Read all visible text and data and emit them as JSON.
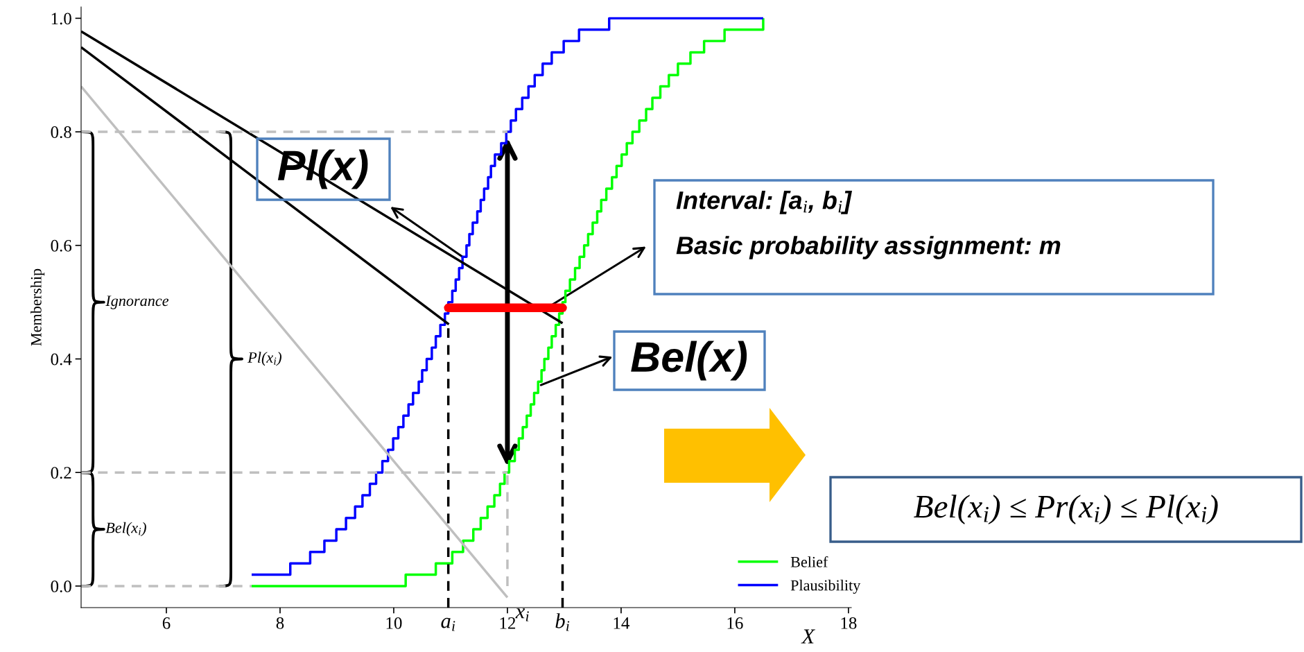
{
  "chart_data": {
    "type": "step",
    "xlabel": "X",
    "ylabel": "Membership",
    "xlim": [
      4.5,
      18.05
    ],
    "ylim": [
      -0.038,
      1.02
    ],
    "xticks": [
      6,
      8,
      10,
      12,
      14,
      16,
      18
    ],
    "yticks": [
      {
        "value": 0,
        "label": "0.0"
      },
      {
        "value": 0.2,
        "label": "0.2"
      },
      {
        "value": 0.4,
        "label": "0.4"
      },
      {
        "value": 0.6,
        "label": "0.6"
      },
      {
        "value": 0.8,
        "label": "0.8"
      },
      {
        "value": 1.0,
        "label": "1.0"
      }
    ],
    "legend": "bottom right",
    "series": [
      {
        "name": "Belief",
        "color": "#00ff00",
        "x": [
          7.5,
          10.21,
          10.74,
          11.03,
          11.22,
          11.4,
          11.53,
          11.65,
          11.77,
          11.87,
          11.95,
          12.03,
          12.13,
          12.2,
          12.27,
          12.34,
          12.41,
          12.47,
          12.54,
          12.6,
          12.65,
          12.72,
          12.78,
          12.85,
          12.91,
          12.97,
          13.02,
          13.1,
          13.19,
          13.27,
          13.35,
          13.42,
          13.5,
          13.58,
          13.65,
          13.74,
          13.84,
          13.92,
          14.01,
          14.1,
          14.2,
          14.32,
          14.44,
          14.55,
          14.69,
          14.84,
          15.0,
          15.22,
          15.46,
          15.82,
          16.5
        ],
        "values": [
          0,
          0.02,
          0.04,
          0.06,
          0.08,
          0.1,
          0.12,
          0.14,
          0.16,
          0.18,
          0.2,
          0.22,
          0.24,
          0.26,
          0.28,
          0.3,
          0.32,
          0.34,
          0.36,
          0.38,
          0.4,
          0.42,
          0.44,
          0.46,
          0.48,
          0.5,
          0.52,
          0.54,
          0.56,
          0.58,
          0.6,
          0.62,
          0.64,
          0.66,
          0.68,
          0.7,
          0.72,
          0.74,
          0.76,
          0.78,
          0.8,
          0.82,
          0.84,
          0.86,
          0.88,
          0.9,
          0.92,
          0.94,
          0.96,
          0.98,
          1.0
        ]
      },
      {
        "name": "Plausibility",
        "color": "#0000ff",
        "x": [
          7.5,
          8.18,
          8.53,
          8.78,
          8.99,
          9.16,
          9.32,
          9.45,
          9.58,
          9.69,
          9.8,
          9.9,
          9.99,
          10.08,
          10.17,
          10.26,
          10.34,
          10.44,
          10.5,
          10.58,
          10.67,
          10.74,
          10.82,
          10.9,
          10.96,
          11.03,
          11.09,
          11.15,
          11.21,
          11.28,
          11.33,
          11.39,
          11.47,
          11.53,
          11.59,
          11.66,
          11.71,
          11.78,
          11.89,
          11.98,
          12.06,
          12.15,
          12.26,
          12.37,
          12.48,
          12.62,
          12.78,
          12.99,
          13.26,
          13.79,
          16.5
        ],
        "values": [
          0.02,
          0.04,
          0.06,
          0.08,
          0.1,
          0.12,
          0.14,
          0.16,
          0.18,
          0.2,
          0.22,
          0.24,
          0.26,
          0.28,
          0.3,
          0.32,
          0.34,
          0.36,
          0.38,
          0.4,
          0.42,
          0.44,
          0.46,
          0.48,
          0.5,
          0.52,
          0.54,
          0.56,
          0.58,
          0.6,
          0.62,
          0.64,
          0.66,
          0.68,
          0.7,
          0.72,
          0.74,
          0.76,
          0.78,
          0.8,
          0.82,
          0.84,
          0.86,
          0.88,
          0.9,
          0.92,
          0.94,
          0.96,
          0.98,
          1.0,
          1.0
        ]
      },
      {
        "type": "line",
        "color": "#bfbfbf",
        "x": [
          4.5,
          12.0
        ],
        "values": [
          0.88,
          -0.02
        ]
      },
      {
        "type": "line",
        "color": "#000000",
        "x": [
          4.5,
          12.97
        ],
        "values": [
          0.977,
          0.463
        ]
      },
      {
        "type": "line",
        "color": "#000000",
        "x": [
          4.5,
          10.97
        ],
        "values": [
          0.949,
          0.461
        ]
      },
      {
        "type": "line",
        "color": "#bfbfbf",
        "line_style": "dashed",
        "x": [
          4.5,
          12.0
        ],
        "values": [
          0.8,
          0.8
        ]
      },
      {
        "type": "line",
        "color": "#bfbfbf",
        "line_style": "dashed",
        "x": [
          4.5,
          12.0
        ],
        "values": [
          0.2,
          0.2
        ]
      },
      {
        "type": "line",
        "color": "#bfbfbf",
        "line_style": "dashed",
        "x": [
          4.5,
          7.5
        ],
        "values": [
          0,
          0
        ]
      },
      {
        "type": "line",
        "color": "#bfbfbf",
        "line_style": "dashed",
        "x": [
          12.0,
          12.0
        ],
        "values": [
          0,
          0.2
        ]
      },
      {
        "type": "line",
        "color": "#000000",
        "line_style": "dashed",
        "x": [
          10.96,
          10.96
        ],
        "values": [
          -0.038,
          0.46
        ]
      },
      {
        "type": "line",
        "color": "#000000",
        "line_style": "dashed",
        "x": [
          12.97,
          12.97
        ],
        "values": [
          -0.038,
          0.46
        ]
      },
      {
        "type": "line",
        "color": "#ff0000",
        "x": [
          10.96,
          12.97
        ],
        "values": [
          0.49,
          0.49
        ]
      }
    ],
    "annotations": [
      {
        "text": "Ignorance",
        "x": 4.52,
        "y": 0.8
      },
      {
        "text": "Bel(x$_{i}$)",
        "x": 4.52,
        "y": 0.2
      },
      {
        "text": "Pl(x$_{i}$)",
        "x": 6.94,
        "y": 0.8
      },
      {
        "text": "a$_{i}$",
        "x": 10.96,
        "y": -0.038
      },
      "x$_{i}$",
      {
        "text": "b$_{i}$",
        "x": 12.97,
        "y": -0.038
      },
      {
        "text": "Pl(x)",
        "x": 11.21,
        "y": 0.58
      },
      "Interval: [a$_{i}$, b$_{i}$]",
      {
        "text": "Basic probability assignment: m",
        "x": 12.7,
        "y": 0.49
      },
      {
        "text": "Bel(x)",
        "x": 12.59,
        "y": 0.354
      },
      "Bel(x$_{i}$) ≤ Pr(x$_{i}$) ≤ Pl(x$_{i}$)"
    ]
  }
}
